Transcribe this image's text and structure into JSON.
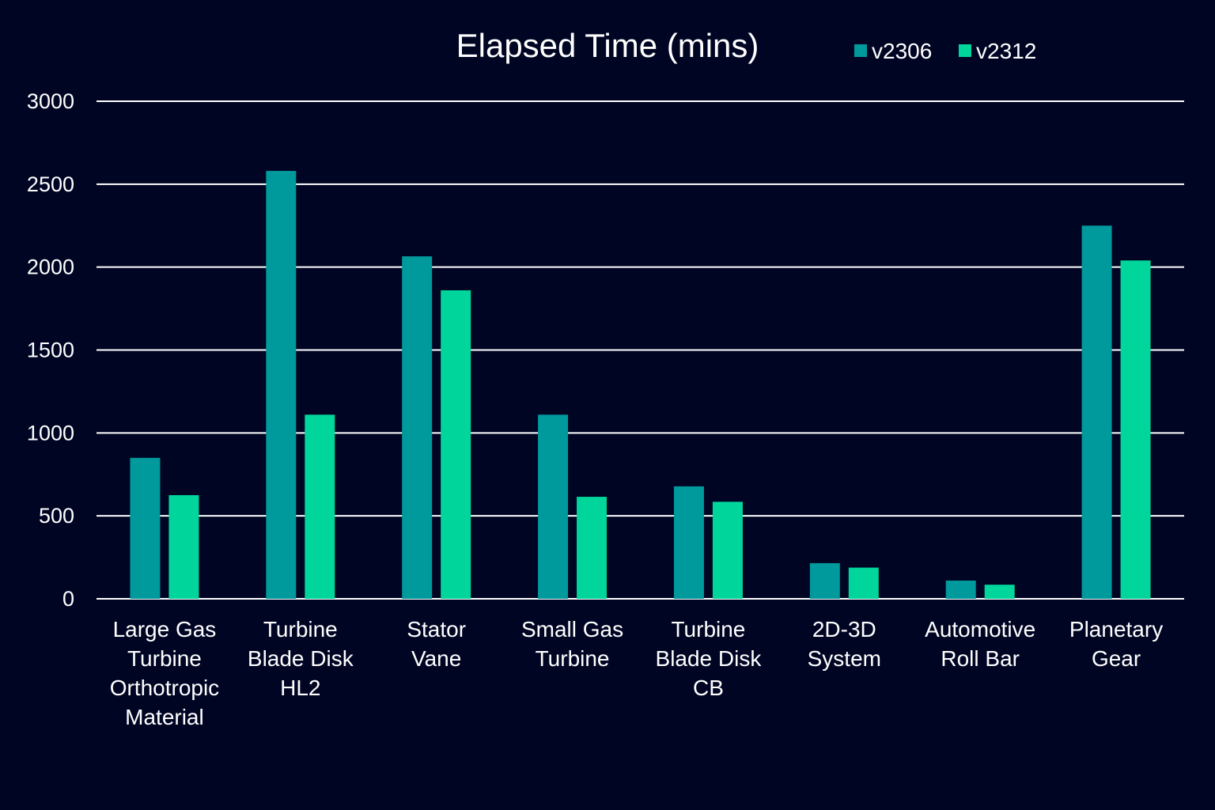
{
  "chart_data": {
    "type": "bar",
    "title": "Elapsed Time (mins)",
    "xlabel": "",
    "ylabel": "",
    "ylim": [
      0,
      3000
    ],
    "yticks": [
      0,
      500,
      1000,
      1500,
      2000,
      2500,
      3000
    ],
    "grid": true,
    "legend_position": "top-right",
    "categories": [
      [
        "Large Gas",
        "Turbine",
        "Orthotropic",
        "Material"
      ],
      [
        "Turbine",
        "Blade Disk",
        "HL2"
      ],
      [
        "Stator",
        "Vane"
      ],
      [
        "Small Gas",
        "Turbine"
      ],
      [
        "Turbine",
        "Blade Disk",
        "CB"
      ],
      [
        "2D-3D",
        "System"
      ],
      [
        "Automotive",
        "Roll Bar"
      ],
      [
        "Planetary",
        "Gear"
      ]
    ],
    "series": [
      {
        "name": "v2306",
        "color": "#00999c",
        "values": [
          850,
          2580,
          2065,
          1110,
          678,
          215,
          110,
          2250
        ]
      },
      {
        "name": "v2312",
        "color": "#00d69c",
        "values": [
          625,
          1110,
          1860,
          615,
          585,
          188,
          85,
          2040
        ]
      }
    ]
  },
  "colors": {
    "background": "#000523",
    "gridline": "#ffffff",
    "text": "#ffffff"
  }
}
